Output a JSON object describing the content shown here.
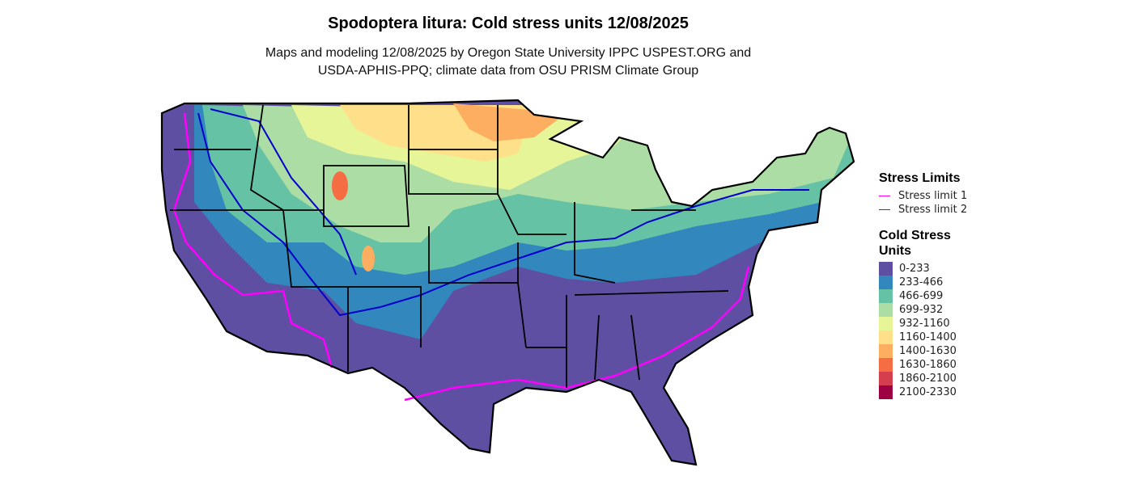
{
  "title": "Spodoptera litura: Cold stress units 12/08/2025",
  "subtitle_line1": "Maps and modeling 12/08/2025 by Oregon State University IPPC USPEST.ORG and",
  "subtitle_line2": "USDA-APHIS-PPQ; climate data from OSU PRISM Climate Group",
  "legend": {
    "limits_title": "Stress Limits",
    "limits": [
      {
        "label": "Stress limit 1",
        "color": "#FF00FF"
      },
      {
        "label": "Stress limit 2",
        "color": "#0000CD"
      }
    ],
    "units_title_line1": "Cold Stress",
    "units_title_line2": "Units",
    "bins": [
      {
        "label": "0-233",
        "color": "#5E4FA2"
      },
      {
        "label": "233-466",
        "color": "#3288BD"
      },
      {
        "label": "466-699",
        "color": "#66C2A5"
      },
      {
        "label": "699-932",
        "color": "#ABDDA4"
      },
      {
        "label": "932-1160",
        "color": "#E6F598"
      },
      {
        "label": "1160-1400",
        "color": "#FEE08B"
      },
      {
        "label": "1400-1630",
        "color": "#FDAE61"
      },
      {
        "label": "1630-1860",
        "color": "#F46D43"
      },
      {
        "label": "1860-2100",
        "color": "#D53E4F"
      },
      {
        "label": "2100-2330",
        "color": "#9E0142"
      }
    ]
  }
}
